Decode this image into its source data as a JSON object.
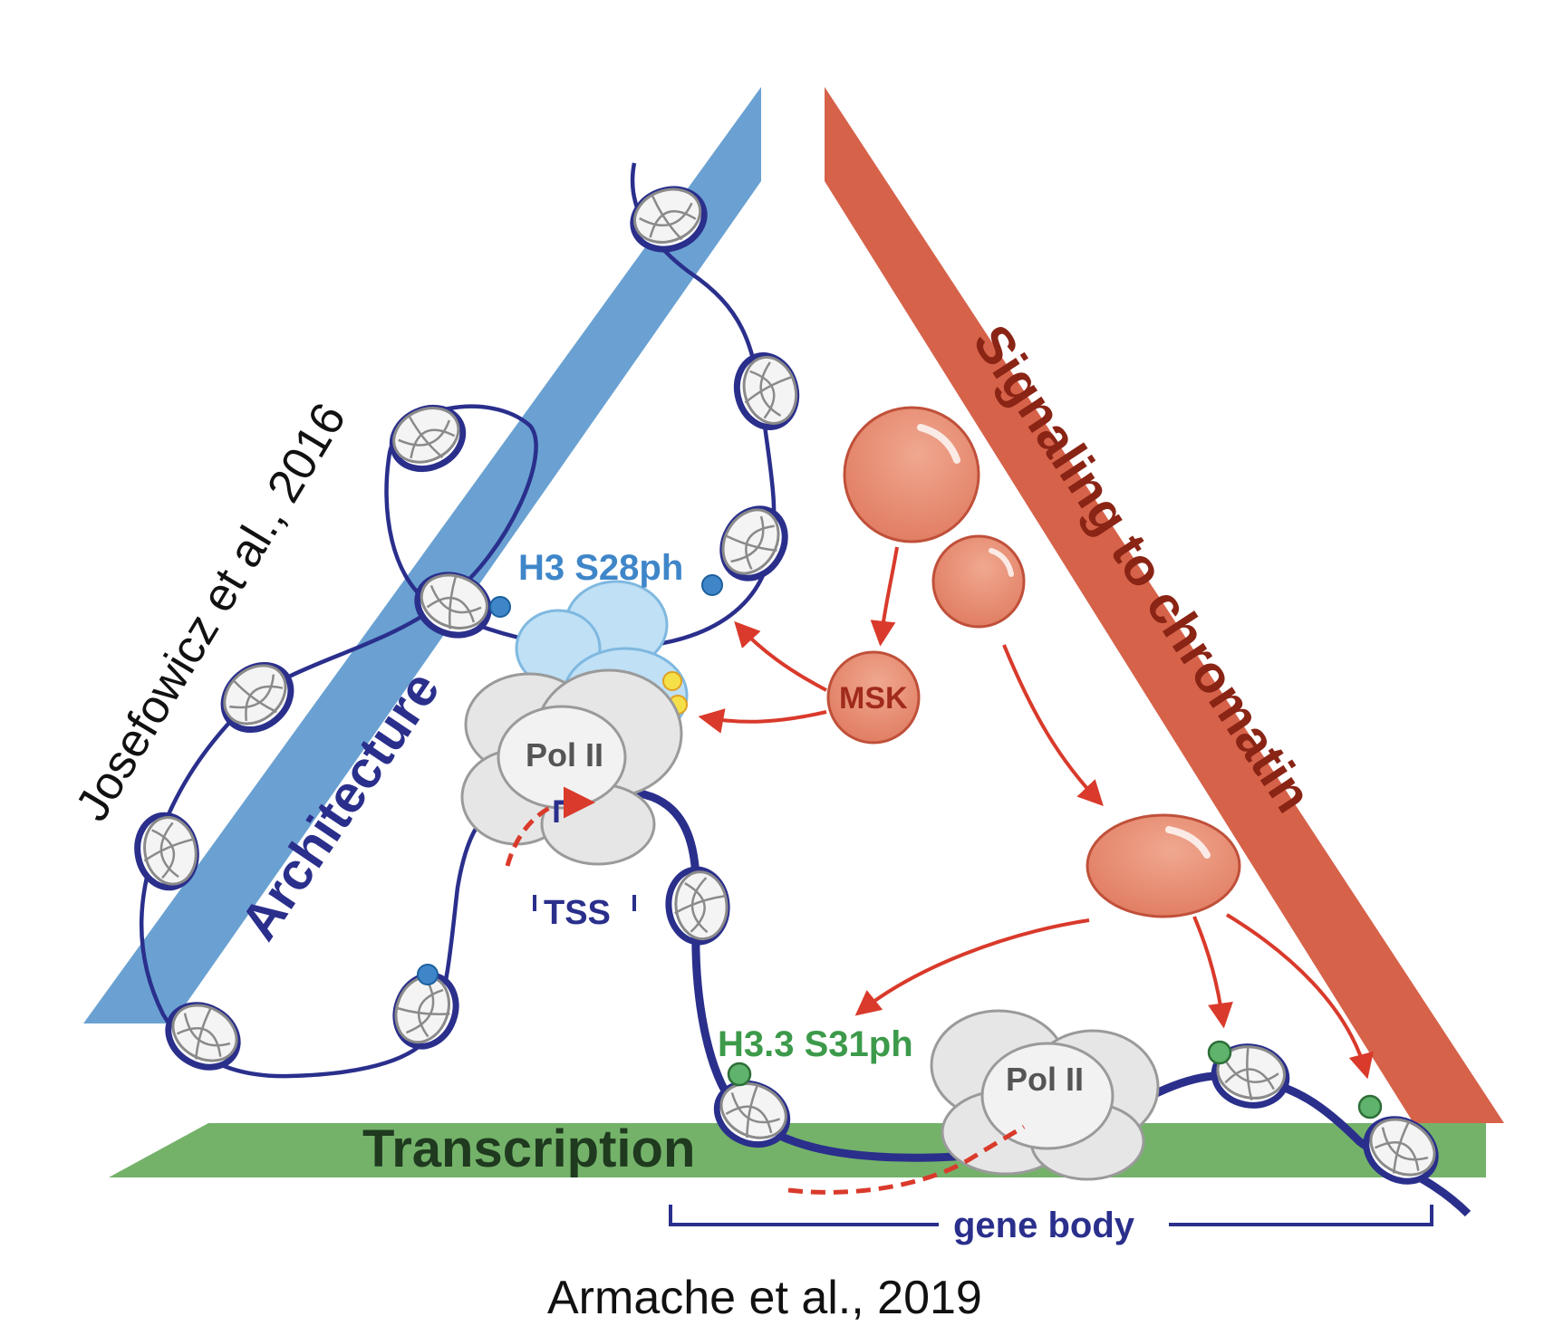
{
  "labels": {
    "architecture": "Architecture",
    "signaling": "Signaling to chromatin",
    "transcription": "Transcription",
    "citation_left": "Josefowicz et al., 2016",
    "citation_bottom": "Armache et al., 2019",
    "h3_s28ph": "H3 S28ph",
    "h33_s31ph": "H3.3 S31ph",
    "msk": "MSK",
    "pol2_top": "Pol II",
    "pol2_bottom": "Pol II",
    "tss": "TSS",
    "gene_body": "gene body"
  },
  "colors": {
    "architecture_band": "#6aa1d2",
    "signaling_band": "#d6624a",
    "transcription_band": "#74b26a",
    "dna": "#2a2f8c",
    "h3_mark": "#3f86c9",
    "h33_mark": "#3c9a4a",
    "arrow": "#d93a2b",
    "signal_sphere": "#e5896e",
    "polymerase": "#e6e6e6",
    "remodeler": "#bfe0f5"
  },
  "icons": {
    "nucleosome": "nucleosome-icon",
    "polymerase": "pol-ii-complex-icon",
    "signaling_protein": "signaling-sphere-icon",
    "phospho_mark": "phospho-dot-icon",
    "promoter_arrow": "tss-arrow-icon"
  }
}
